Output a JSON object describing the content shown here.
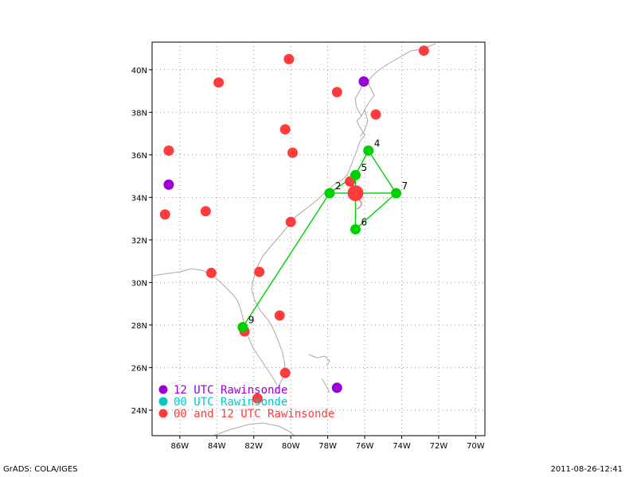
{
  "map": {
    "lon_range": [
      -87.5,
      -69.5
    ],
    "lat_range": [
      22.8,
      41.3
    ],
    "grid": true,
    "lon_ticks": [
      {
        "value": -86,
        "label": "86W"
      },
      {
        "value": -84,
        "label": "84W"
      },
      {
        "value": -82,
        "label": "82W"
      },
      {
        "value": -80,
        "label": "80W"
      },
      {
        "value": -78,
        "label": "78W"
      },
      {
        "value": -76,
        "label": "76W"
      },
      {
        "value": -74,
        "label": "74W"
      },
      {
        "value": -72,
        "label": "72W"
      },
      {
        "value": -70,
        "label": "70W"
      }
    ],
    "lat_ticks": [
      {
        "value": 24,
        "label": "24N"
      },
      {
        "value": 26,
        "label": "26N"
      },
      {
        "value": 28,
        "label": "28N"
      },
      {
        "value": 30,
        "label": "30N"
      },
      {
        "value": 32,
        "label": "32N"
      },
      {
        "value": 34,
        "label": "34N"
      },
      {
        "value": 36,
        "label": "36N"
      },
      {
        "value": 38,
        "label": "38N"
      },
      {
        "value": 40,
        "label": "40N"
      }
    ]
  },
  "colors": {
    "red": "#ff3b3b",
    "purple": "#9a00d6",
    "cyan": "#00c8c8",
    "green": "#00d000",
    "coast": "#a8a8a8"
  },
  "legend": [
    {
      "label": "12 UTC Rawinsonde",
      "color": "#9a00d6"
    },
    {
      "label": "00 UTC Rawinsonde",
      "color": "#00c8c8"
    },
    {
      "label": "00 and 12 UTC Rawinsonde",
      "color": "#ff3b3b"
    }
  ],
  "storm_center": {
    "lon": -76.5,
    "lat": 34.2
  },
  "red_stations": [
    {
      "lon": -72.8,
      "lat": 40.9
    },
    {
      "lon": -80.1,
      "lat": 40.5
    },
    {
      "lon": -83.9,
      "lat": 39.4
    },
    {
      "lon": -77.5,
      "lat": 38.95
    },
    {
      "lon": -75.4,
      "lat": 37.9
    },
    {
      "lon": -80.3,
      "lat": 37.2
    },
    {
      "lon": -86.6,
      "lat": 36.2
    },
    {
      "lon": -79.9,
      "lat": 36.1
    },
    {
      "lon": -76.8,
      "lat": 34.75
    },
    {
      "lon": -86.8,
      "lat": 33.2
    },
    {
      "lon": -84.6,
      "lat": 33.35
    },
    {
      "lon": -80.0,
      "lat": 32.85
    },
    {
      "lon": -84.3,
      "lat": 30.45
    },
    {
      "lon": -81.7,
      "lat": 30.5
    },
    {
      "lon": -80.6,
      "lat": 28.45
    },
    {
      "lon": -82.5,
      "lat": 27.7
    },
    {
      "lon": -81.8,
      "lat": 24.55
    },
    {
      "lon": -80.3,
      "lat": 25.75
    }
  ],
  "purple_stations": [
    {
      "lon": -76.05,
      "lat": 39.45
    },
    {
      "lon": -86.6,
      "lat": 34.6
    },
    {
      "lon": -77.5,
      "lat": 25.05
    }
  ],
  "track_points": [
    {
      "id": "4",
      "lon": -75.8,
      "lat": 36.2
    },
    {
      "id": "5",
      "lon": -76.5,
      "lat": 35.05
    },
    {
      "id": "2",
      "lon": -77.9,
      "lat": 34.2
    },
    {
      "id": "7",
      "lon": -74.3,
      "lat": 34.2
    },
    {
      "id": "6",
      "lon": -76.5,
      "lat": 32.5
    },
    {
      "id": "9",
      "lon": -82.6,
      "lat": 27.9
    }
  ],
  "track_lines": [
    [
      "4",
      "5"
    ],
    [
      "5",
      "2"
    ],
    [
      "4",
      "7"
    ],
    [
      "2",
      "7"
    ],
    [
      "5",
      "6"
    ],
    [
      "6",
      "7"
    ],
    [
      "2",
      "9"
    ]
  ],
  "footer": {
    "left": "GrADS: COLA/IGES",
    "right": "2011-08-26-12:41"
  }
}
